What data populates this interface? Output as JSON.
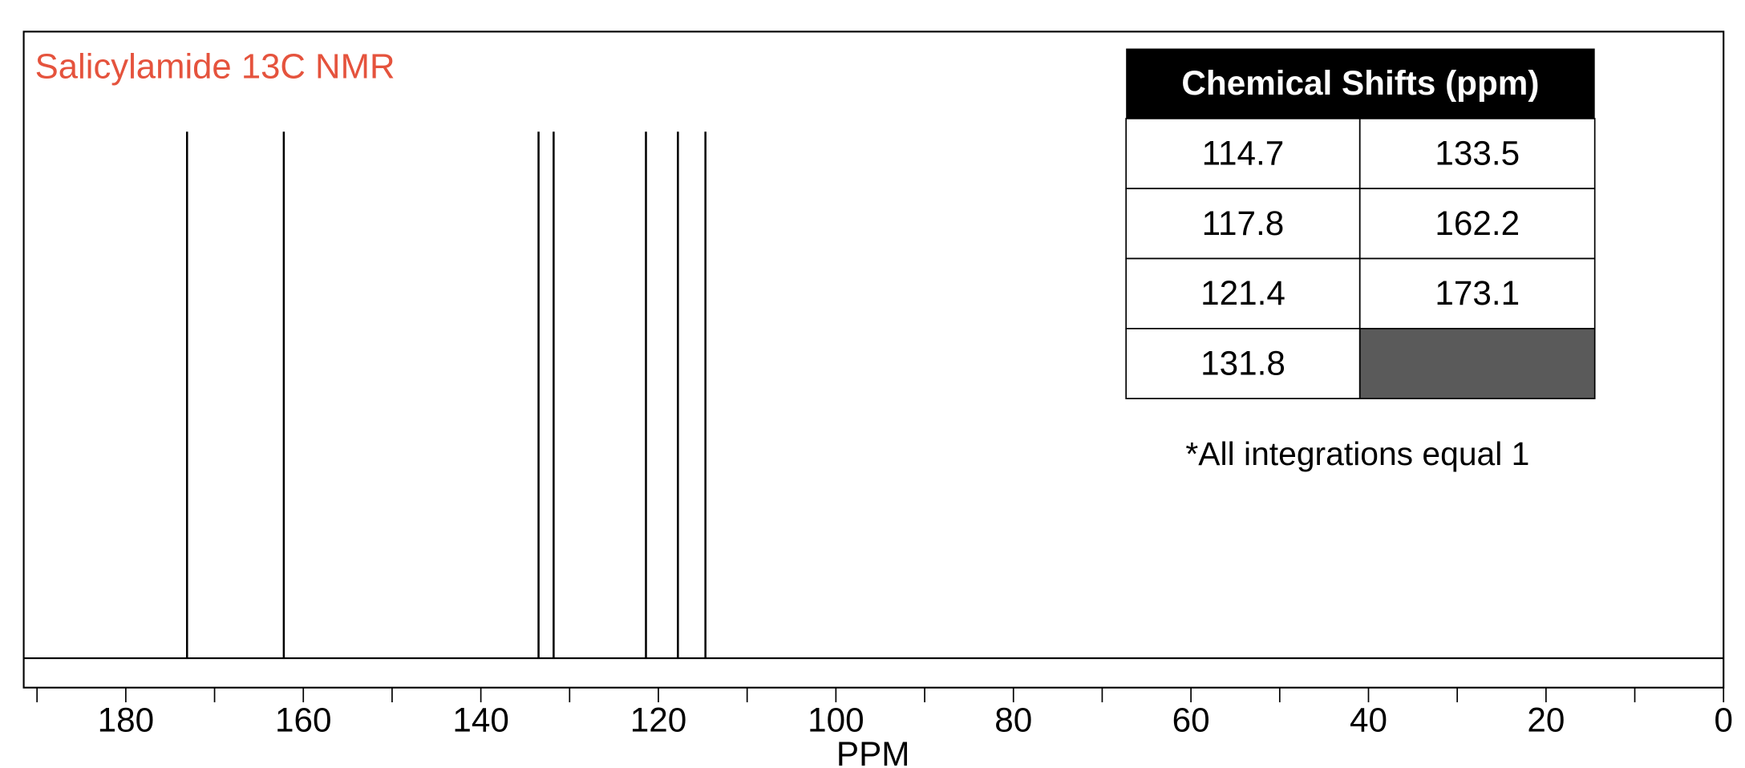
{
  "chart_data": {
    "type": "stick",
    "title": "Salicylamide 13C NMR",
    "xlabel": "PPM",
    "x": [
      173.1,
      162.2,
      133.5,
      131.8,
      121.4,
      117.8,
      114.7
    ],
    "values": [
      1,
      1,
      1,
      1,
      1,
      1,
      1
    ],
    "color": "#000000",
    "title_color": "#e5533d",
    "xlim": [
      191.5,
      0
    ],
    "ylim": [
      0,
      1.19
    ],
    "xticks": [
      180,
      160,
      140,
      120,
      100,
      80,
      60,
      40,
      20,
      0
    ],
    "xminorticks": [
      190,
      170,
      150,
      130,
      110,
      90,
      70,
      50,
      30,
      10
    ],
    "annotation": "*All integrations equal 1"
  },
  "table": {
    "header": "Chemical Shifts (ppm)",
    "rows": [
      [
        114.7,
        133.5
      ],
      [
        117.8,
        162.2
      ],
      [
        121.4,
        173.1
      ],
      [
        131.8,
        null
      ]
    ]
  }
}
